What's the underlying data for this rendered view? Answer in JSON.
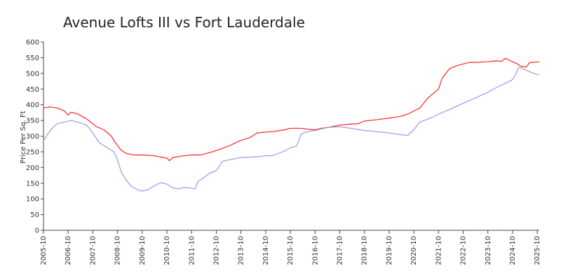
{
  "chart_data": {
    "type": "line",
    "title": "Avenue Lofts III vs Fort Lauderdale",
    "xlabel": "",
    "ylabel": "Price Per Sq. Ft",
    "ylim": [
      0,
      600
    ],
    "yticks": [
      0,
      50,
      100,
      150,
      200,
      250,
      300,
      350,
      400,
      450,
      500,
      550,
      600
    ],
    "xlim": [
      2005.75,
      2025.83
    ],
    "xticks": [
      {
        "label": "2005-10",
        "value": 2005.75
      },
      {
        "label": "2006-10",
        "value": 2006.75
      },
      {
        "label": "2007-10",
        "value": 2007.75
      },
      {
        "label": "2008-10",
        "value": 2008.75
      },
      {
        "label": "2009-10",
        "value": 2009.75
      },
      {
        "label": "2010-10",
        "value": 2010.75
      },
      {
        "label": "2011-10",
        "value": 2011.75
      },
      {
        "label": "2012-10",
        "value": 2012.75
      },
      {
        "label": "2013-10",
        "value": 2013.75
      },
      {
        "label": "2014-10",
        "value": 2014.75
      },
      {
        "label": "2015-10",
        "value": 2015.75
      },
      {
        "label": "2016-10",
        "value": 2016.75
      },
      {
        "label": "2017-10",
        "value": 2017.75
      },
      {
        "label": "2018-10",
        "value": 2018.75
      },
      {
        "label": "2019-10",
        "value": 2019.75
      },
      {
        "label": "2020-10",
        "value": 2020.75
      },
      {
        "label": "2021-10",
        "value": 2021.75
      },
      {
        "label": "2022-10",
        "value": 2022.75
      },
      {
        "label": "2023-10",
        "value": 2023.75
      },
      {
        "label": "2024-10",
        "value": 2024.75
      },
      {
        "label": "2025-10",
        "value": 2025.75
      }
    ],
    "series": [
      {
        "name": "Fort Lauderdale",
        "color": "#ff2222",
        "points": [
          [
            2005.75,
            390
          ],
          [
            2006.0,
            393
          ],
          [
            2006.3,
            390
          ],
          [
            2006.6,
            380
          ],
          [
            2006.75,
            367
          ],
          [
            2006.85,
            376
          ],
          [
            2007.1,
            372
          ],
          [
            2007.5,
            355
          ],
          [
            2007.9,
            330
          ],
          [
            2008.2,
            320
          ],
          [
            2008.5,
            300
          ],
          [
            2008.7,
            275
          ],
          [
            2008.9,
            255
          ],
          [
            2009.1,
            245
          ],
          [
            2009.4,
            240
          ],
          [
            2009.75,
            240
          ],
          [
            2010.2,
            238
          ],
          [
            2010.6,
            232
          ],
          [
            2010.75,
            230
          ],
          [
            2010.85,
            222
          ],
          [
            2011.0,
            232
          ],
          [
            2011.4,
            237
          ],
          [
            2011.75,
            240
          ],
          [
            2012.1,
            240
          ],
          [
            2012.5,
            248
          ],
          [
            2012.9,
            258
          ],
          [
            2013.3,
            270
          ],
          [
            2013.7,
            285
          ],
          [
            2014.1,
            295
          ],
          [
            2014.4,
            310
          ],
          [
            2014.75,
            313
          ],
          [
            2015.1,
            315
          ],
          [
            2015.5,
            320
          ],
          [
            2015.75,
            325
          ],
          [
            2016.2,
            325
          ],
          [
            2016.5,
            322
          ],
          [
            2016.75,
            320
          ],
          [
            2017.0,
            325
          ],
          [
            2017.3,
            328
          ],
          [
            2017.75,
            335
          ],
          [
            2018.1,
            338
          ],
          [
            2018.5,
            340
          ],
          [
            2018.75,
            348
          ],
          [
            2019.2,
            352
          ],
          [
            2019.5,
            355
          ],
          [
            2019.75,
            357
          ],
          [
            2020.2,
            363
          ],
          [
            2020.5,
            370
          ],
          [
            2020.75,
            380
          ],
          [
            2021.0,
            390
          ],
          [
            2021.3,
            420
          ],
          [
            2021.6,
            440
          ],
          [
            2021.75,
            450
          ],
          [
            2021.9,
            485
          ],
          [
            2022.2,
            515
          ],
          [
            2022.5,
            525
          ],
          [
            2022.75,
            530
          ],
          [
            2023.0,
            535
          ],
          [
            2023.3,
            535
          ],
          [
            2023.75,
            537
          ],
          [
            2024.1,
            540
          ],
          [
            2024.3,
            538
          ],
          [
            2024.45,
            548
          ],
          [
            2024.75,
            537
          ],
          [
            2024.95,
            530
          ],
          [
            2025.1,
            522
          ],
          [
            2025.3,
            520
          ],
          [
            2025.45,
            535
          ],
          [
            2025.6,
            535
          ],
          [
            2025.83,
            537
          ]
        ]
      },
      {
        "name": "Avenue Lofts III",
        "color": "#9999ee",
        "points": [
          [
            2005.75,
            285
          ],
          [
            2005.9,
            305
          ],
          [
            2006.1,
            325
          ],
          [
            2006.3,
            340
          ],
          [
            2006.6,
            345
          ],
          [
            2006.9,
            350
          ],
          [
            2007.2,
            343
          ],
          [
            2007.5,
            335
          ],
          [
            2007.75,
            310
          ],
          [
            2008.0,
            280
          ],
          [
            2008.3,
            265
          ],
          [
            2008.6,
            250
          ],
          [
            2008.75,
            225
          ],
          [
            2008.9,
            185
          ],
          [
            2009.1,
            160
          ],
          [
            2009.3,
            140
          ],
          [
            2009.6,
            128
          ],
          [
            2009.75,
            125
          ],
          [
            2010.0,
            130
          ],
          [
            2010.2,
            140
          ],
          [
            2010.5,
            152
          ],
          [
            2010.75,
            147
          ],
          [
            2011.0,
            135
          ],
          [
            2011.2,
            132
          ],
          [
            2011.5,
            137
          ],
          [
            2011.9,
            132
          ],
          [
            2012.0,
            155
          ],
          [
            2012.2,
            165
          ],
          [
            2012.5,
            183
          ],
          [
            2012.75,
            190
          ],
          [
            2013.0,
            220
          ],
          [
            2013.3,
            225
          ],
          [
            2013.75,
            232
          ],
          [
            2014.1,
            233
          ],
          [
            2014.5,
            235
          ],
          [
            2014.75,
            238
          ],
          [
            2015.0,
            237
          ],
          [
            2015.5,
            252
          ],
          [
            2015.75,
            263
          ],
          [
            2016.0,
            268
          ],
          [
            2016.2,
            308
          ],
          [
            2016.5,
            315
          ],
          [
            2016.75,
            318
          ],
          [
            2017.0,
            323
          ],
          [
            2017.3,
            328
          ],
          [
            2017.75,
            330
          ],
          [
            2018.2,
            325
          ],
          [
            2018.75,
            318
          ],
          [
            2019.2,
            315
          ],
          [
            2019.75,
            310
          ],
          [
            2020.2,
            305
          ],
          [
            2020.5,
            302
          ],
          [
            2020.75,
            320
          ],
          [
            2021.0,
            345
          ],
          [
            2021.5,
            360
          ],
          [
            2021.75,
            370
          ],
          [
            2022.2,
            385
          ],
          [
            2022.75,
            405
          ],
          [
            2023.2,
            420
          ],
          [
            2023.75,
            440
          ],
          [
            2024.1,
            455
          ],
          [
            2024.5,
            470
          ],
          [
            2024.75,
            480
          ],
          [
            2024.9,
            500
          ],
          [
            2025.0,
            520
          ],
          [
            2025.3,
            510
          ],
          [
            2025.6,
            500
          ],
          [
            2025.83,
            495
          ]
        ]
      }
    ]
  }
}
